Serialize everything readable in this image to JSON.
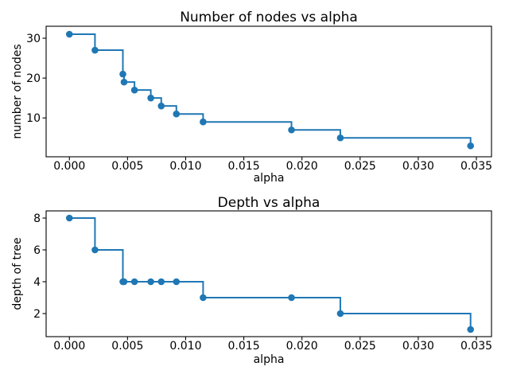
{
  "figure": {
    "background": "#ffffff",
    "text_color": "#000000",
    "accent_color": "#1f77b4"
  },
  "chart_data": [
    {
      "id": "nodes-vs-alpha",
      "type": "line",
      "drawstyle": "steps-post",
      "marker": "circle",
      "color": "#1f77b4",
      "title": "Number of nodes vs alpha",
      "xlabel": "alpha",
      "ylabel": "number of nodes",
      "x": [
        0.0,
        0.0022,
        0.0046,
        0.0047,
        0.0056,
        0.007,
        0.0079,
        0.0092,
        0.0115,
        0.0191,
        0.0233,
        0.0345
      ],
      "y": [
        31,
        27,
        21,
        19,
        17,
        15,
        13,
        11,
        9,
        7,
        5,
        3
      ],
      "xlim": [
        -0.002,
        0.0363
      ],
      "ylim": [
        0.26,
        33.0
      ],
      "xtick_values": [
        0.0,
        0.005,
        0.01,
        0.015,
        0.02,
        0.025,
        0.03,
        0.035
      ],
      "xtick_labels": [
        "0.000",
        "0.005",
        "0.010",
        "0.015",
        "0.020",
        "0.025",
        "0.030",
        "0.035"
      ],
      "ytick_values": [
        10,
        20,
        30
      ],
      "ytick_labels": [
        "10",
        "20",
        "30"
      ],
      "grid": false,
      "legend": null
    },
    {
      "id": "depth-vs-alpha",
      "type": "line",
      "drawstyle": "steps-post",
      "marker": "circle",
      "color": "#1f77b4",
      "title": "Depth vs alpha",
      "xlabel": "alpha",
      "ylabel": "depth of tree",
      "x": [
        0.0,
        0.0022,
        0.0046,
        0.0047,
        0.0056,
        0.007,
        0.0079,
        0.0092,
        0.0115,
        0.0191,
        0.0233,
        0.0345
      ],
      "y": [
        8,
        6,
        4,
        4,
        4,
        4,
        4,
        4,
        3,
        3,
        2,
        1
      ],
      "xlim": [
        -0.002,
        0.0363
      ],
      "ylim": [
        0.55,
        8.45
      ],
      "xtick_values": [
        0.0,
        0.005,
        0.01,
        0.015,
        0.02,
        0.025,
        0.03,
        0.035
      ],
      "xtick_labels": [
        "0.000",
        "0.005",
        "0.010",
        "0.015",
        "0.020",
        "0.025",
        "0.030",
        "0.035"
      ],
      "ytick_values": [
        2,
        4,
        6,
        8
      ],
      "ytick_labels": [
        "2",
        "4",
        "6",
        "8"
      ],
      "grid": false,
      "legend": null
    }
  ]
}
